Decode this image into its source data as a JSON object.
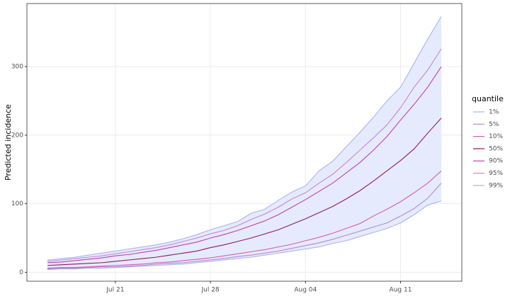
{
  "chart_data": {
    "type": "line",
    "y_label": "Predicted incidence",
    "legend_title": "quantile",
    "legend": "right",
    "grid": true,
    "ribbon_color": "#e6eafd",
    "categories": [
      null,
      null,
      null,
      null,
      null,
      "Jul 21",
      null,
      null,
      null,
      null,
      null,
      null,
      "Jul 28",
      null,
      null,
      null,
      null,
      null,
      null,
      "Aug 04",
      null,
      null,
      null,
      null,
      null,
      null,
      "Aug 11",
      null,
      null,
      null
    ],
    "ylim": [
      -13,
      392
    ],
    "yticks": [
      0,
      100,
      200,
      300
    ],
    "series": [
      {
        "name": "1%",
        "color": "#a9b3ee",
        "values": [
          4,
          5,
          5,
          6,
          6,
          7,
          8,
          9,
          10,
          11,
          12,
          14,
          16,
          18,
          20,
          22,
          25,
          28,
          31,
          34,
          37,
          42,
          46,
          52,
          58,
          64,
          72,
          84,
          98,
          104
        ]
      },
      {
        "name": "5%",
        "color": "#b08ad8",
        "values": [
          5,
          6,
          6,
          7,
          8,
          8,
          9,
          10,
          12,
          13,
          14,
          16,
          18,
          20,
          23,
          25,
          28,
          31,
          35,
          39,
          43,
          48,
          54,
          60,
          66,
          72,
          82,
          93,
          108,
          130
        ]
      },
      {
        "name": "10%",
        "color": "#d55cb0",
        "values": [
          6,
          7,
          7,
          8,
          9,
          10,
          11,
          12,
          14,
          15,
          17,
          19,
          21,
          24,
          27,
          30,
          33,
          37,
          41,
          46,
          51,
          57,
          64,
          71,
          82,
          92,
          103,
          116,
          130,
          148
        ]
      },
      {
        "name": "50%",
        "color": "#8c1a5c",
        "values": [
          10,
          11,
          12,
          13,
          14,
          16,
          18,
          20,
          22,
          25,
          28,
          31,
          36,
          40,
          45,
          50,
          56,
          62,
          70,
          78,
          87,
          96,
          107,
          119,
          133,
          148,
          163,
          180,
          203,
          225
        ]
      },
      {
        "name": "90%",
        "color": "#c23fae",
        "values": [
          14,
          15,
          17,
          19,
          21,
          24,
          26,
          29,
          32,
          36,
          40,
          44,
          50,
          55,
          61,
          68,
          75,
          84,
          95,
          106,
          118,
          130,
          145,
          160,
          178,
          198,
          222,
          245,
          270,
          300
        ]
      },
      {
        "name": "95%",
        "color": "#c387d8",
        "values": [
          16,
          18,
          20,
          22,
          24,
          27,
          30,
          33,
          36,
          40,
          45,
          50,
          56,
          61,
          68,
          77,
          85,
          95,
          107,
          116,
          130,
          143,
          160,
          178,
          196,
          215,
          240,
          270,
          295,
          326
        ]
      },
      {
        "name": "99%",
        "color": "#a9b3ee",
        "values": [
          18,
          20,
          22,
          25,
          28,
          31,
          34,
          37,
          40,
          44,
          49,
          55,
          62,
          68,
          74,
          86,
          92,
          105,
          117,
          126,
          148,
          162,
          183,
          204,
          226,
          250,
          270,
          305,
          340,
          373
        ]
      }
    ]
  }
}
